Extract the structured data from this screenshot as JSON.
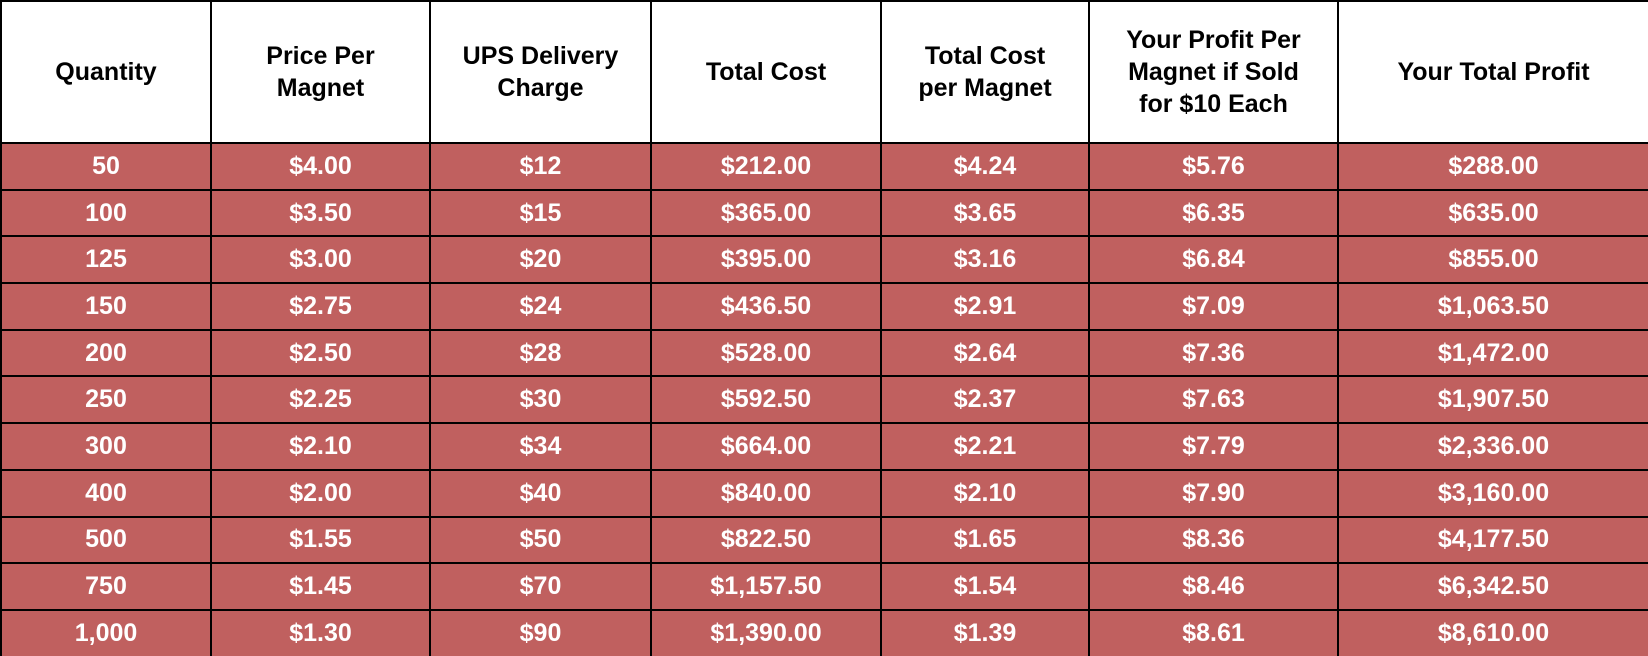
{
  "table": {
    "header": [
      [
        "Quantity"
      ],
      [
        "Price Per",
        "Magnet"
      ],
      [
        "UPS Delivery",
        "Charge"
      ],
      [
        "Total Cost"
      ],
      [
        "Total Cost",
        "per Magnet"
      ],
      [
        "Your Profit Per",
        "Magnet if Sold",
        "for $10 Each"
      ],
      [
        "Your Total Profit"
      ]
    ],
    "rows": [
      [
        "50",
        "$4.00",
        "$12",
        "$212.00",
        "$4.24",
        "$5.76",
        "$288.00"
      ],
      [
        "100",
        "$3.50",
        "$15",
        "$365.00",
        "$3.65",
        "$6.35",
        "$635.00"
      ],
      [
        "125",
        "$3.00",
        "$20",
        "$395.00",
        "$3.16",
        "$6.84",
        "$855.00"
      ],
      [
        "150",
        "$2.75",
        "$24",
        "$436.50",
        "$2.91",
        "$7.09",
        "$1,063.50"
      ],
      [
        "200",
        "$2.50",
        "$28",
        "$528.00",
        "$2.64",
        "$7.36",
        "$1,472.00"
      ],
      [
        "250",
        "$2.25",
        "$30",
        "$592.50",
        "$2.37",
        "$7.63",
        "$1,907.50"
      ],
      [
        "300",
        "$2.10",
        "$34",
        "$664.00",
        "$2.21",
        "$7.79",
        "$2,336.00"
      ],
      [
        "400",
        "$2.00",
        "$40",
        "$840.00",
        "$2.10",
        "$7.90",
        "$3,160.00"
      ],
      [
        "500",
        "$1.55",
        "$50",
        "$822.50",
        "$1.65",
        "$8.36",
        "$4,177.50"
      ],
      [
        "750",
        "$1.45",
        "$70",
        "$1,157.50",
        "$1.54",
        "$8.46",
        "$6,342.50"
      ],
      [
        "1,000",
        "$1.30",
        "$90",
        "$1,390.00",
        "$1.39",
        "$8.61",
        "$8,610.00"
      ]
    ]
  }
}
